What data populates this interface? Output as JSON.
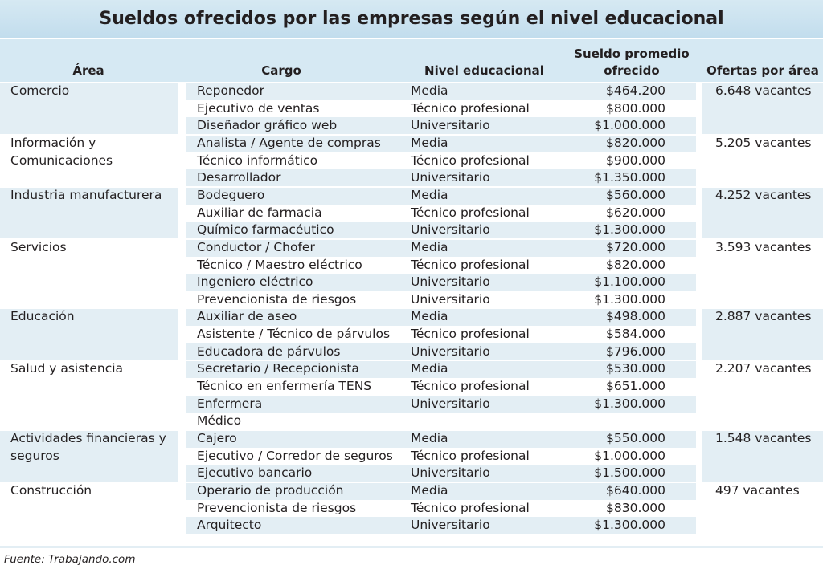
{
  "title": "Sueldos ofrecidos por las empresas según el nivel educacional",
  "headers": {
    "area": "Área",
    "cargo": "Cargo",
    "nivel": "Nivel educacional",
    "sueldo_line1": "Sueldo promedio",
    "sueldo_line2": "ofrecido",
    "ofertas": "Ofertas por área"
  },
  "groups": [
    {
      "area": "Comercio",
      "ofertas": "6.648 vacantes",
      "rows": [
        {
          "cargo": "Reponedor",
          "nivel": "Media",
          "sueldo": "$464.200"
        },
        {
          "cargo": "Ejecutivo de ventas",
          "nivel": "Técnico profesional",
          "sueldo": "$800.000"
        },
        {
          "cargo": "Diseñador gráfico web",
          "nivel": "Universitario",
          "sueldo": "$1.000.000"
        }
      ]
    },
    {
      "area": "Información y Comunicaciones",
      "ofertas": "5.205 vacantes",
      "rows": [
        {
          "cargo": "Analista / Agente de compras",
          "nivel": "Media",
          "sueldo": "$820.000"
        },
        {
          "cargo": "Técnico informático",
          "nivel": "Técnico profesional",
          "sueldo": "$900.000"
        },
        {
          "cargo": "Desarrollador",
          "nivel": "Universitario",
          "sueldo": "$1.350.000"
        }
      ]
    },
    {
      "area": "Industria manufacturera",
      "ofertas": "4.252 vacantes",
      "rows": [
        {
          "cargo": "Bodeguero",
          "nivel": "Media",
          "sueldo": "$560.000"
        },
        {
          "cargo": "Auxiliar de farmacia",
          "nivel": "Técnico profesional",
          "sueldo": "$620.000"
        },
        {
          "cargo": "Químico farmacéutico",
          "nivel": "Universitario",
          "sueldo": "$1.300.000"
        }
      ]
    },
    {
      "area": "Servicios",
      "ofertas": "3.593 vacantes",
      "rows": [
        {
          "cargo": "Conductor / Chofer",
          "nivel": "Media",
          "sueldo": "$720.000"
        },
        {
          "cargo": "Técnico / Maestro eléctrico",
          "nivel": "Técnico profesional",
          "sueldo": "$820.000"
        },
        {
          "cargo": "Ingeniero eléctrico",
          "nivel": "Universitario",
          "sueldo": "$1.100.000"
        },
        {
          "cargo": "Prevencionista de riesgos",
          "nivel": "Universitario",
          "sueldo": "$1.300.000"
        }
      ]
    },
    {
      "area": "Educación",
      "ofertas": "2.887 vacantes",
      "rows": [
        {
          "cargo": "Auxiliar de aseo",
          "nivel": "Media",
          "sueldo": "$498.000"
        },
        {
          "cargo": "Asistente / Técnico de párvulos",
          "nivel": "Técnico profesional",
          "sueldo": "$584.000"
        },
        {
          "cargo": "Educadora de párvulos",
          "nivel": "Universitario",
          "sueldo": "$796.000"
        }
      ]
    },
    {
      "area": "Salud y asistencia",
      "ofertas": "2.207 vacantes",
      "rows": [
        {
          "cargo": "Secretario / Recepcionista",
          "nivel": "Media",
          "sueldo": "$530.000"
        },
        {
          "cargo": "Técnico en enfermería TENS",
          "nivel": "Técnico profesional",
          "sueldo": "$651.000"
        },
        {
          "cargo": "Enfermera",
          "nivel": "Universitario",
          "sueldo": "$1.300.000"
        },
        {
          "cargo": "Médico",
          "nivel": "",
          "sueldo": ""
        }
      ]
    },
    {
      "area": "Actividades financieras y seguros",
      "ofertas": "1.548 vacantes",
      "rows": [
        {
          "cargo": "Cajero",
          "nivel": "Media",
          "sueldo": "$550.000"
        },
        {
          "cargo": "Ejecutivo / Corredor de seguros",
          "nivel": "Técnico profesional",
          "sueldo": "$1.000.000"
        },
        {
          "cargo": "Ejecutivo bancario",
          "nivel": "Universitario",
          "sueldo": "$1.500.000"
        }
      ]
    },
    {
      "area": "Construcción",
      "ofertas": "497 vacantes",
      "rows": [
        {
          "cargo": "Operario de producción",
          "nivel": "Media",
          "sueldo": "$640.000"
        },
        {
          "cargo": "Prevencionista de riesgos",
          "nivel": "Técnico profesional",
          "sueldo": "$830.000"
        },
        {
          "cargo": "Arquitecto",
          "nivel": "Universitario",
          "sueldo": "$1.300.000"
        }
      ]
    }
  ],
  "footer": "Fuente: Trabajando.com",
  "colors": {
    "header_bg": "#d6e9f3",
    "row_stripe": "#e3eef4",
    "text": "#231f20"
  }
}
